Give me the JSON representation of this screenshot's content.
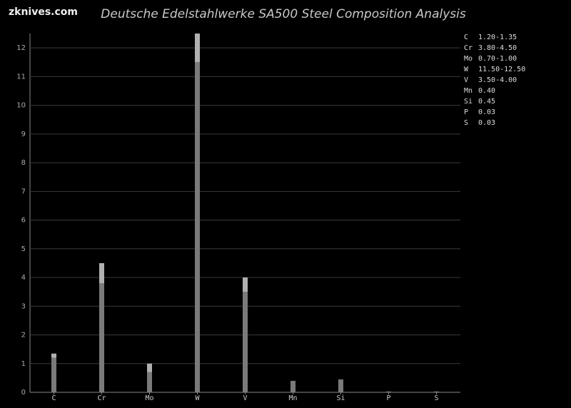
{
  "chart_data": {
    "type": "range-bar",
    "site": "zknives.com",
    "title": "Deutsche Edelstahlwerke SA500 Steel Composition Analysis",
    "categories": [
      "C",
      "Cr",
      "Mo",
      "W",
      "V",
      "Mn",
      "Si",
      "P",
      "S"
    ],
    "low": [
      1.2,
      3.8,
      0.7,
      11.5,
      3.5,
      0.4,
      0.45,
      0.03,
      0.03
    ],
    "high": [
      1.35,
      4.5,
      1.0,
      12.5,
      4.0,
      null,
      null,
      null,
      null
    ],
    "value_labels": [
      "1.20-1.35",
      "3.80-4.50",
      "0.70-1.00",
      "11.50-12.50",
      "3.50-4.00",
      "0.40",
      "0.45",
      "0.03",
      "0.03"
    ],
    "low_color": "#7a7a7a",
    "high_color": "#b0b0b0",
    "ylim": [
      0,
      12.5
    ],
    "yticks": [
      0,
      1,
      2,
      3,
      4,
      5,
      6,
      7,
      8,
      9,
      10,
      11,
      12
    ],
    "grid": true
  }
}
